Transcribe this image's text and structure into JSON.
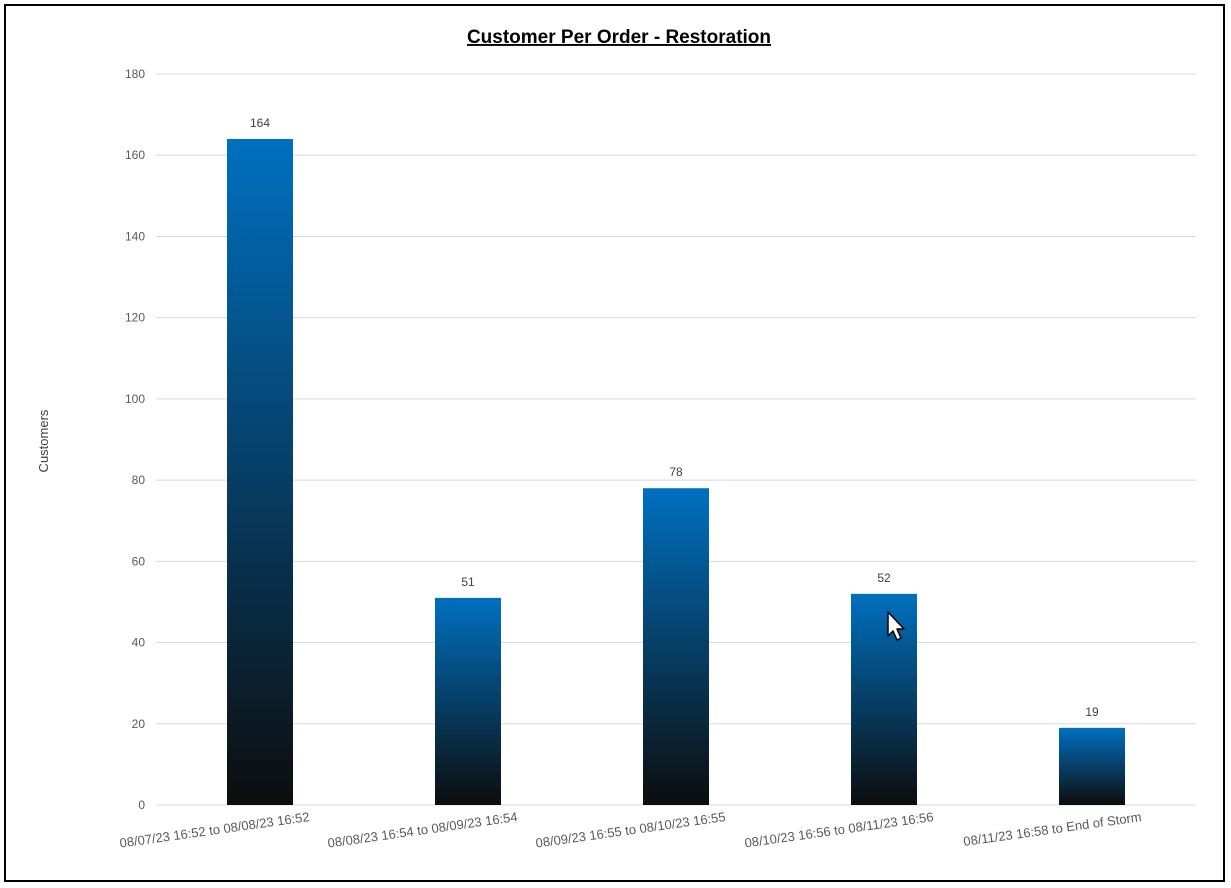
{
  "chart_data": {
    "type": "bar",
    "title": "Customer Per Order - Restoration",
    "xlabel": "",
    "ylabel": "Customers",
    "categories": [
      "08/07/23 16:52 to 08/08/23 16:52",
      "08/08/23 16:54 to 08/09/23 16:54",
      "08/09/23 16:55 to 08/10/23 16:55",
      "08/10/23 16:56 to 08/11/23 16:56",
      "08/11/23 16:58 to End of Storm"
    ],
    "values": [
      164,
      51,
      78,
      52,
      19
    ],
    "data_labels": [
      "164",
      "51",
      "78",
      "52",
      "19"
    ],
    "ylim": [
      0,
      180
    ],
    "yticks": [
      "0",
      "20",
      "40",
      "60",
      "80",
      "100",
      "120",
      "140",
      "160",
      "180"
    ],
    "grid": true,
    "legend": "none",
    "colors": {
      "bar_top": "#0070c0",
      "bar_bottom": "#0d0d0d",
      "grid": "#d9d9d9"
    }
  }
}
